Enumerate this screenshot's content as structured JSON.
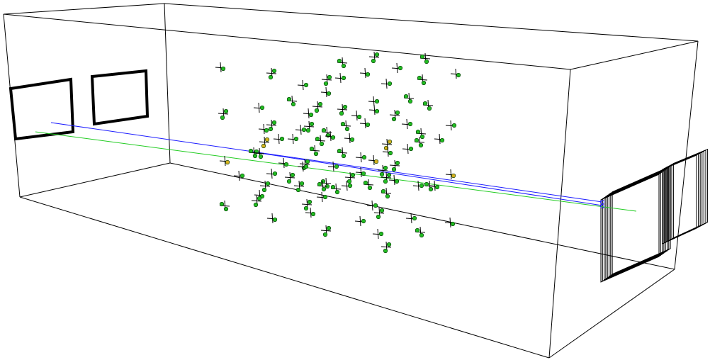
{
  "colors": {
    "background": "#ffffff",
    "box_edge": "#000000",
    "track_blue": "#1a1aff",
    "track_green": "#22cc22",
    "hit_green": "#22bb22",
    "hit_yellow": "#d4b020",
    "hit_outline": "#003300",
    "marker": "#000000"
  },
  "scene": {
    "type": "3d-detector-event-display",
    "target_planes": 2,
    "detector_planes": 8,
    "hit_sites_count": 95,
    "reconstructed_tracks": 2,
    "track_colors": [
      "blue",
      "green"
    ]
  }
}
